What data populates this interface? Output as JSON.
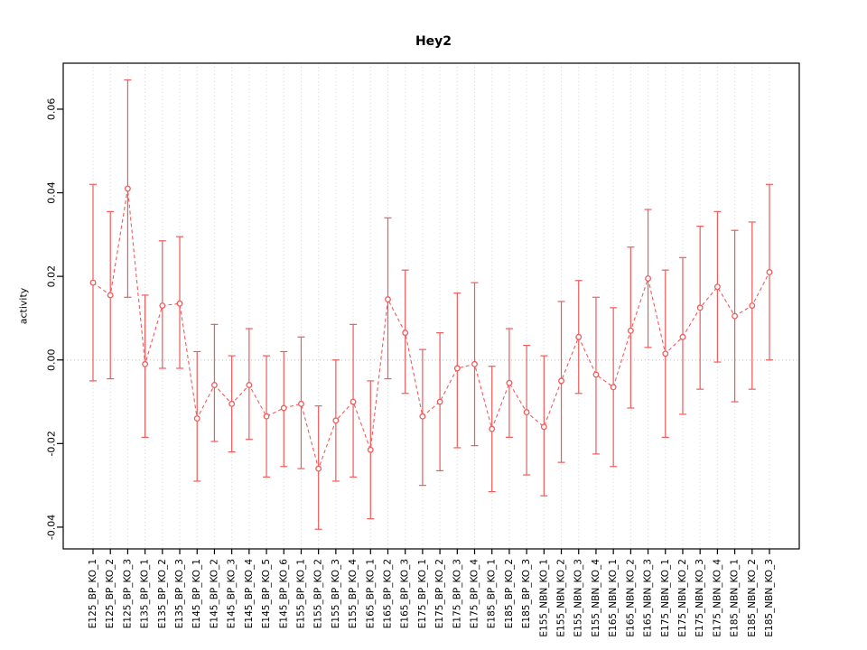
{
  "chart_data": {
    "type": "line",
    "title": "Hey2",
    "ylabel": "activity",
    "xlabel": "",
    "ylim": [
      -0.0452,
      0.071
    ],
    "yticks": [
      -0.04,
      -0.02,
      0,
      0.02,
      0.04,
      0.06
    ],
    "grid": "vertical dotted gridline at every category; horizontal dotted line at y=0",
    "legend": "none",
    "point_style": "open-circle",
    "line_style": "dashed",
    "error_bars": "vertical with caps",
    "series_color": "#f15b5b",
    "grid_color": "#d9d9d9",
    "zero_line_color": "#c0c0c0",
    "axis_color": "#000000",
    "categories": [
      "E125_BP_KO_1",
      "E125_BP_KO_2",
      "E125_BP_KO_3",
      "E135_BP_KO_1",
      "E135_BP_KO_2",
      "E135_BP_KO_3",
      "E145_BP_KO_1",
      "E145_BP_KO_2",
      "E145_BP_KO_3",
      "E145_BP_KO_4",
      "E145_BP_KO_5",
      "E145_BP_KO_6",
      "E155_BP_KO_1",
      "E155_BP_KO_2",
      "E155_BP_KO_3",
      "E155_BP_KO_4",
      "E165_BP_KO_1",
      "E165_BP_KO_2",
      "E165_BP_KO_3",
      "E175_BP_KO_1",
      "E175_BP_KO_2",
      "E175_BP_KO_3",
      "E175_BP_KO_4",
      "E185_BP_KO_1",
      "E185_BP_KO_2",
      "E185_BP_KO_3",
      "E155_NBN_KO_1",
      "E155_NBN_KO_2",
      "E155_NBN_KO_3",
      "E155_NBN_KO_4",
      "E165_NBN_KO_1",
      "E165_NBN_KO_2",
      "E165_NBN_KO_3",
      "E175_NBN_KO_1",
      "E175_NBN_KO_2",
      "E175_NBN_KO_3",
      "E175_NBN_KO_4",
      "E185_NBN_KO_1",
      "E185_NBN_KO_2",
      "E185_NBN_KO_3"
    ],
    "values": [
      0.0185,
      0.0155,
      0.041,
      -0.001,
      0.013,
      0.0135,
      -0.014,
      -0.006,
      -0.0105,
      -0.006,
      -0.0135,
      -0.0115,
      -0.0105,
      -0.026,
      -0.0145,
      -0.01,
      -0.0215,
      0.0145,
      0.0065,
      -0.0135,
      -0.01,
      -0.002,
      -0.001,
      -0.0165,
      -0.0055,
      -0.0125,
      -0.016,
      -0.005,
      0.0055,
      -0.0035,
      -0.0065,
      0.007,
      0.0195,
      0.0015,
      0.0055,
      0.0125,
      0.0175,
      0.0105,
      0.013,
      0.021
    ],
    "ci_lower": [
      -0.005,
      -0.0045,
      0.015,
      -0.0185,
      -0.002,
      -0.002,
      -0.029,
      -0.0195,
      -0.022,
      -0.019,
      -0.028,
      -0.0255,
      -0.026,
      -0.0405,
      -0.029,
      -0.028,
      -0.038,
      -0.0045,
      -0.008,
      -0.03,
      -0.0265,
      -0.021,
      -0.0205,
      -0.0315,
      -0.0185,
      -0.0275,
      -0.0325,
      -0.0245,
      -0.008,
      -0.0225,
      -0.0255,
      -0.0115,
      0.003,
      -0.0185,
      -0.013,
      -0.007,
      -0.0005,
      -0.01,
      -0.007,
      0.0
    ],
    "ci_upper": [
      0.042,
      0.0355,
      0.067,
      0.0155,
      0.0285,
      0.0295,
      0.002,
      0.0085,
      0.001,
      0.0075,
      0.001,
      0.002,
      0.0055,
      -0.011,
      0.0,
      0.0085,
      -0.005,
      0.034,
      0.0215,
      0.0025,
      0.0065,
      0.016,
      0.0185,
      -0.0015,
      0.0075,
      0.0035,
      0.001,
      0.014,
      0.019,
      0.015,
      0.0125,
      0.027,
      0.036,
      0.0215,
      0.0245,
      0.032,
      0.0355,
      0.031,
      0.033,
      0.042
    ]
  }
}
